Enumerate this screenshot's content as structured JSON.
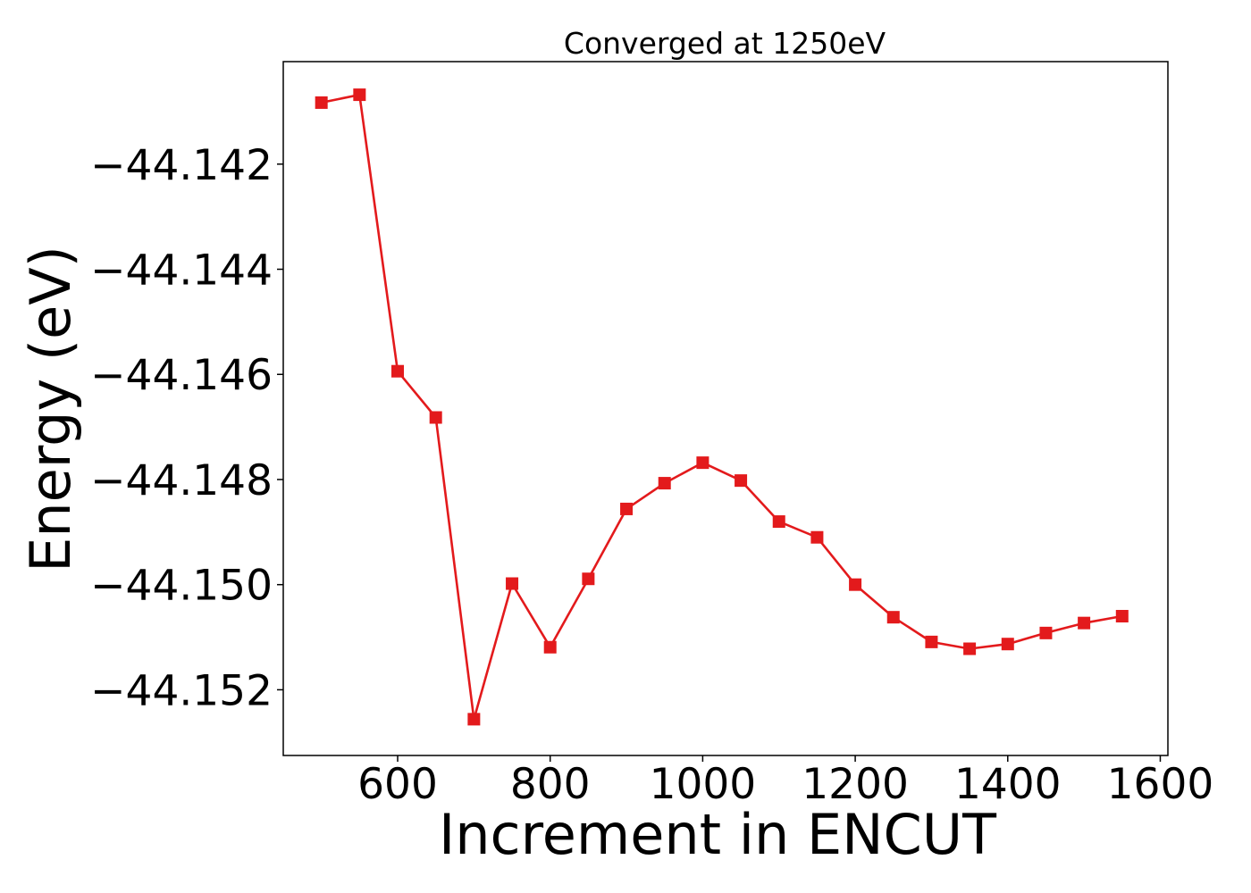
{
  "chart_data": {
    "type": "line",
    "title": "Converged at 1250eV",
    "xlabel": "Increment in ENCUT",
    "ylabel": "Energy (eV)",
    "xlim": [
      450,
      1610
    ],
    "ylim": [
      -44.15325,
      -44.14005
    ],
    "x_ticks": [
      600,
      800,
      1000,
      1200,
      1400,
      1600
    ],
    "x_tick_labels": [
      "600",
      "800",
      "1000",
      "1200",
      "1400",
      "1600"
    ],
    "y_ticks": [
      -44.142,
      -44.144,
      -44.146,
      -44.148,
      -44.15,
      -44.152
    ],
    "y_tick_labels": [
      "−44.142",
      "−44.144",
      "−44.146",
      "−44.148",
      "−44.150",
      "−44.152"
    ],
    "grid": false,
    "legend": "none",
    "series": [
      {
        "color": "#e31a1c",
        "marker": "square",
        "x": [
          500,
          550,
          600,
          650,
          700,
          750,
          800,
          850,
          900,
          950,
          1000,
          1050,
          1100,
          1150,
          1200,
          1250,
          1300,
          1350,
          1400,
          1450,
          1500,
          1550
        ],
        "y": [
          -44.14083,
          -44.14068,
          -44.14594,
          -44.14682,
          -44.15256,
          -44.14998,
          -44.15119,
          -44.14989,
          -44.14856,
          -44.14807,
          -44.14768,
          -44.14802,
          -44.1488,
          -44.1491,
          -44.15,
          -44.15062,
          -44.15109,
          -44.15122,
          -44.15113,
          -44.15092,
          -44.15073,
          -44.1506
        ]
      }
    ]
  }
}
